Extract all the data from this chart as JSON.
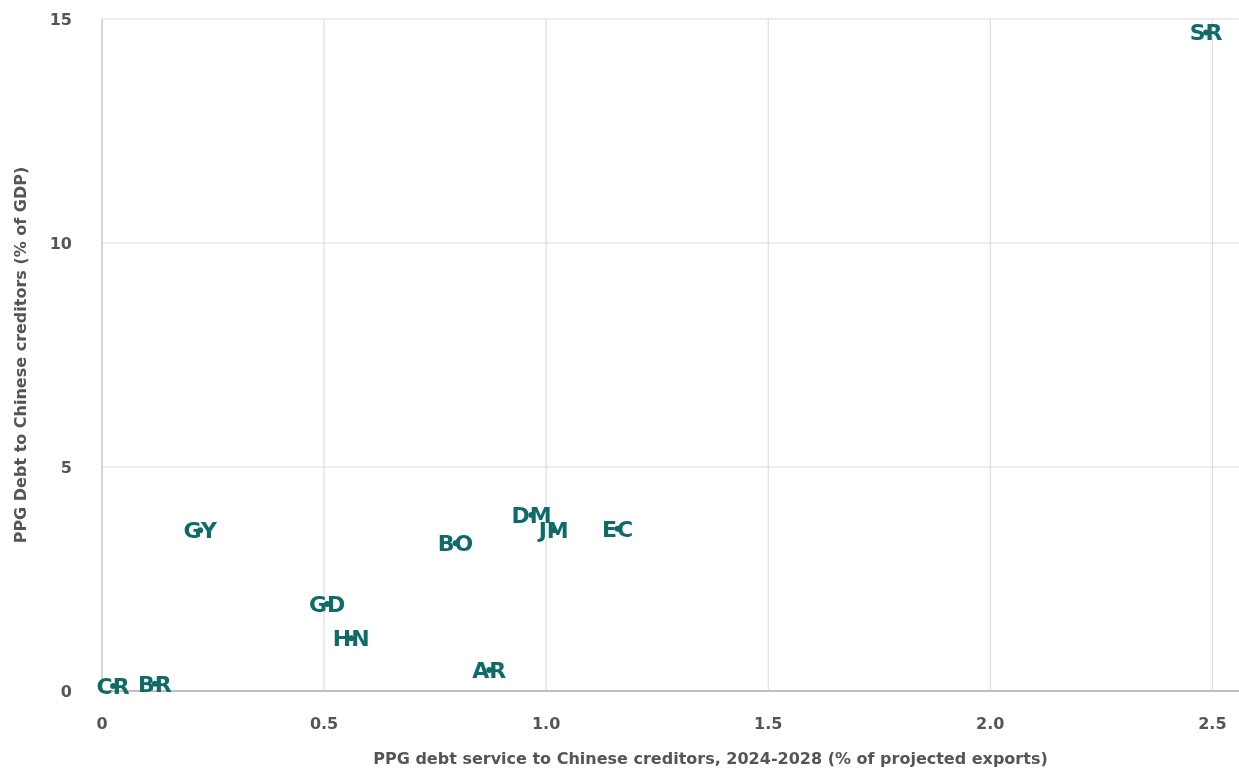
{
  "chart_data": {
    "type": "scatter",
    "xlabel": "PPG debt service to Chinese creditors, 2024-2028 (% of projected exports)",
    "ylabel": "PPG Debt to Chinese creditors (% of GDP)",
    "grid": true,
    "marker": "circle",
    "x": [
      2.486,
      0.221,
      0.967,
      1.017,
      1.161,
      0.796,
      0.507,
      0.561,
      0.872,
      0.119,
      0.025
    ],
    "values": [
      14.7,
      3.59,
      3.93,
      3.59,
      3.62,
      3.3,
      1.94,
      1.18,
      0.47,
      0.16,
      0.11
    ],
    "value_labels": [
      "SR",
      "GY",
      "DM",
      "JM",
      "EC",
      "BO",
      "GD",
      "HN",
      "AR",
      "BR",
      "CR"
    ],
    "color": "#0e6b68",
    "xlim": [
      0,
      2.56
    ],
    "xticks": [
      0,
      0.5,
      {
        "value": 1,
        "label": "1.0"
      },
      1.5,
      {
        "value": 2,
        "label": "2.0"
      },
      2.5
    ],
    "ylim": [
      0,
      15
    ],
    "yticks": [
      0,
      5,
      10,
      15
    ]
  }
}
